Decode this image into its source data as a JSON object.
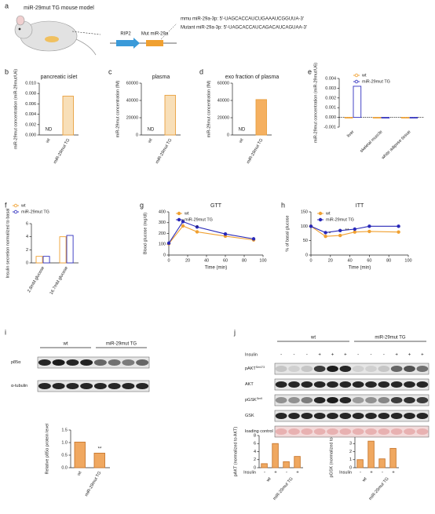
{
  "panel_labels": [
    "a",
    "b",
    "c",
    "d",
    "e",
    "f",
    "g",
    "h",
    "i",
    "j"
  ],
  "figure_a": {
    "title": "miR-29mut TG mouse model",
    "promoter": "RIP2",
    "gene": "Mut miR-29a",
    "seq_wt": "mmu miR-29a-3p: 5'-UAGCACCAUCUGAAAUCGGUUA-3'",
    "seq_mut": "Mutant miR-29a-3p: 5'-UAGCACCAUCAGACAUCAGUAA-3'"
  },
  "chart_data": [
    {
      "type": "bar",
      "title": "pancreatic islet",
      "y_label": "miR-29mut concentration (miR-29mut/U6)",
      "categories": [
        "wt",
        "miR-29mut TG"
      ],
      "values": [
        null,
        0.0075
      ],
      "color": "#f8dfb8",
      "edge_color": "#e8a040",
      "ylim": [
        0,
        0.01
      ],
      "yticks": [
        {
          "value": 0,
          "label": "0.000"
        },
        0.002,
        0.004,
        0.006,
        0.008,
        {
          "value": 0.01,
          "label": "0.010"
        }
      ],
      "annotations": [
        "ND"
      ]
    },
    {
      "type": "bar",
      "title": "plasma",
      "y_label": "miR-29mut concentration (fM)",
      "categories": [
        "wt",
        "miR-29mut TG"
      ],
      "values": [
        null,
        46000
      ],
      "color": "#f8dfb8",
      "edge_color": "#e8a040",
      "ylim": [
        0,
        60000
      ],
      "yticks": [
        0,
        20000,
        40000,
        60000
      ],
      "annotations": [
        "ND"
      ]
    },
    {
      "type": "bar",
      "title": "exo fraction of plasma",
      "y_label": "miR-29mut concentration (fM)",
      "categories": [
        "wt",
        "miR-29mut TG"
      ],
      "values": [
        null,
        41000
      ],
      "color": "#f5b060",
      "edge_color": "#e8a040",
      "ylim": [
        0,
        60000
      ],
      "yticks": [
        0,
        20000,
        40000,
        60000
      ],
      "annotations": [
        "ND"
      ]
    },
    {
      "type": "bar",
      "y_label": "miR-29mut concentration (miR-29mut/U6)",
      "categories": [
        "liver",
        "skeletal muscle",
        "white adipose tissue"
      ],
      "hollow": true,
      "legend": "upper right",
      "series": [
        {
          "name": "wt",
          "color": "#f0a030",
          "values": [
            0,
            0,
            0
          ]
        },
        {
          "name": "miR-29mut TG",
          "color": "#3030c0",
          "values": [
            0.0032,
            0,
            0
          ]
        }
      ],
      "ylim": [
        -0.001,
        0.004
      ],
      "yticks": [
        -0.001,
        {
          "value": 0,
          "label": "0.000"
        },
        0.001,
        0.002,
        0.003,
        0.004
      ]
    },
    {
      "type": "bar",
      "y_label": "Insulin secretion normalized to basal",
      "categories": [
        "2.8mM glucose",
        "16.7mM glucose"
      ],
      "hollow": true,
      "legend": "upper left",
      "series": [
        {
          "name": "wt",
          "color": "#f0a030",
          "values": [
            1.0,
            4.0
          ]
        },
        {
          "name": "miR-29mut TG",
          "color": "#3030c0",
          "values": [
            1.0,
            4.2
          ]
        }
      ],
      "ylim": [
        0,
        6
      ],
      "yticks": [
        0,
        2,
        4,
        6
      ]
    },
    {
      "type": "line",
      "title": "GTT",
      "y_label": "Blood glucose (mg/dl)",
      "x_label": "Time (min)",
      "legend": "upper left",
      "x": [
        0,
        15,
        30,
        60,
        90
      ],
      "series": [
        {
          "name": "wt",
          "color": "#f0a030",
          "values": [
            105,
            270,
            215,
            175,
            140
          ]
        },
        {
          "name": "miR-29mut TG",
          "color": "#2828b8",
          "values": [
            110,
            310,
            260,
            195,
            150
          ]
        }
      ],
      "xlim": [
        0,
        100
      ],
      "xticks": [
        0,
        20,
        40,
        60,
        80,
        100
      ],
      "ylim": [
        0,
        400
      ],
      "yticks": [
        0,
        100,
        200,
        300,
        400
      ],
      "annotations": [
        "*",
        "*"
      ]
    },
    {
      "type": "line",
      "title": "ITT",
      "y_label": "% of basal glucose",
      "x_label": "Time (min)",
      "legend": "upper left",
      "x": [
        0,
        15,
        30,
        45,
        60,
        90
      ],
      "series": [
        {
          "name": "wt",
          "color": "#f0a030",
          "values": [
            100,
            65,
            68,
            80,
            82,
            80
          ]
        },
        {
          "name": "miR-29mut TG",
          "color": "#2828b8",
          "values": [
            100,
            78,
            85,
            90,
            100,
            100
          ]
        }
      ],
      "xlim": [
        0,
        100
      ],
      "xticks": [
        0,
        20,
        40,
        60,
        80,
        100
      ],
      "ylim": [
        0,
        150
      ],
      "yticks": [
        0,
        50,
        100,
        150
      ],
      "annotations": [
        "*",
        "**"
      ]
    },
    {
      "type": "bar",
      "y_label": "Relative p85α protein level",
      "categories": [
        "wt",
        "miR-29mut TG"
      ],
      "values": [
        1.02,
        0.58
      ],
      "color": "#f0a860",
      "edge_color": "#c87830",
      "ylim": [
        0,
        1.5
      ],
      "yticks": [
        {
          "value": 0,
          "label": "0.0"
        },
        0.5,
        {
          "value": 1,
          "label": "1.0"
        },
        1.5
      ],
      "annotations": [
        "**"
      ]
    },
    {
      "type": "bar",
      "y_label": "pAKT (normalized to AKT)",
      "categories": [
        "-",
        "+",
        "-",
        "+"
      ],
      "groups": [
        "wt",
        "miR-29mut TG"
      ],
      "row_label": "Insulin",
      "values": [
        1.0,
        6.0,
        1.5,
        2.8
      ],
      "color": "#f0a860",
      "edge_color": "#c87830",
      "ylim": [
        0,
        8
      ],
      "yticks": [
        0,
        2,
        4,
        6,
        8
      ],
      "annotations": [
        "**"
      ]
    },
    {
      "type": "bar",
      "y_label": "pGSK (normalized to GSK)",
      "categories": [
        "-",
        "+",
        "-",
        "+"
      ],
      "groups": [
        "wt",
        "miR-29mut TG"
      ],
      "row_label": "Insulin",
      "values": [
        1.0,
        3.3,
        1.1,
        2.4
      ],
      "color": "#f0a860",
      "edge_color": "#c87830",
      "ylim": [
        0,
        4
      ],
      "yticks": [
        0,
        1,
        2,
        3,
        4
      ],
      "annotations": [
        "**"
      ]
    }
  ],
  "blot_i": {
    "groups": [
      "wt",
      "miR-29mut TG"
    ],
    "rows": [
      {
        "name": "p85α"
      },
      {
        "name": "α-tubulin"
      }
    ]
  },
  "blot_j": {
    "groups": [
      "wt",
      "miR-29mut TG"
    ],
    "insulin_label": "Insulin",
    "insulin": [
      "-",
      "-",
      "-",
      "+",
      "+",
      "+",
      "-",
      "-",
      "-",
      "+",
      "+",
      "+"
    ],
    "rows": [
      {
        "name": "pAKT",
        "sup": "Ser473"
      },
      {
        "name": "AKT"
      },
      {
        "name": "pGSK",
        "sup": "Ser9"
      },
      {
        "name": "GSK"
      },
      {
        "name": "loading control"
      }
    ]
  }
}
